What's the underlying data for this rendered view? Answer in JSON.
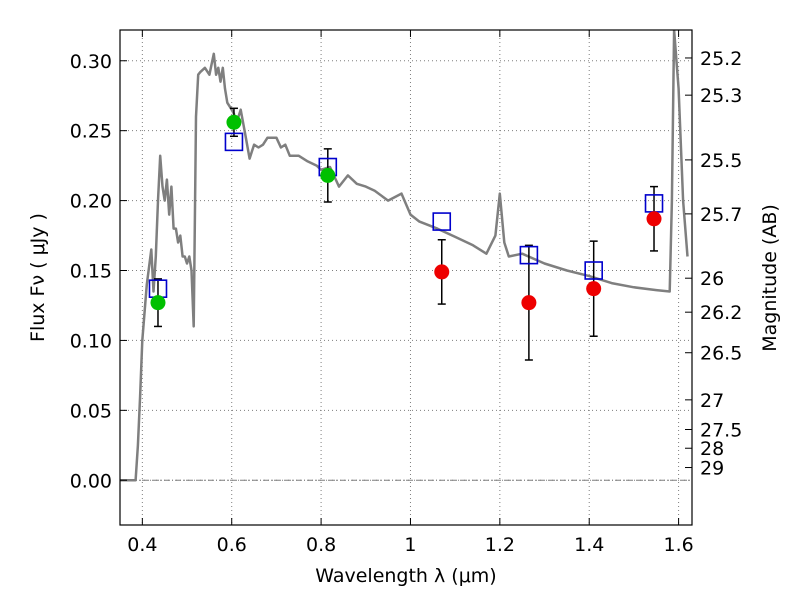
{
  "chart_data": {
    "type": "scatter",
    "xlabel": "Wavelength  λ (μm)",
    "ylabel": "Flux  Fν  ( μJy )",
    "y2label": "Magnitude (AB)",
    "xlim": [
      0.35,
      1.63
    ],
    "ylim": [
      -0.032,
      0.322
    ],
    "grid": true,
    "x_ticks": [
      0.4,
      0.6,
      0.8,
      1.0,
      1.2,
      1.4,
      1.6
    ],
    "x_tick_labels": [
      "0.4",
      "0.6",
      "0.8",
      "1",
      "1.2",
      "1.4",
      "1.6"
    ],
    "y_ticks": [
      0.0,
      0.05,
      0.1,
      0.15,
      0.2,
      0.25,
      0.3
    ],
    "y_tick_labels": [
      "0.00",
      "0.05",
      "0.10",
      "0.15",
      "0.20",
      "0.25",
      "0.30"
    ],
    "mag_ticks": [
      {
        "label": "25.2",
        "flux": 0.302
      },
      {
        "label": "25.3",
        "flux": 0.2754
      },
      {
        "label": "25.5",
        "flux": 0.2291
      },
      {
        "label": "25.7",
        "flux": 0.1905
      },
      {
        "label": "26",
        "flux": 0.1445
      },
      {
        "label": "26.2",
        "flux": 0.1202
      },
      {
        "label": "26.5",
        "flux": 0.0912
      },
      {
        "label": "27",
        "flux": 0.0575
      },
      {
        "label": "27.5",
        "flux": 0.0363
      },
      {
        "label": "28",
        "flux": 0.0229
      },
      {
        "label": "29",
        "flux": 0.0091
      }
    ],
    "series": [
      {
        "type": "line",
        "color": "#7f7f7f",
        "x": [
          0.35,
          0.385,
          0.39,
          0.395,
          0.4,
          0.41,
          0.42,
          0.425,
          0.43,
          0.435,
          0.44,
          0.445,
          0.45,
          0.455,
          0.46,
          0.465,
          0.47,
          0.475,
          0.48,
          0.485,
          0.49,
          0.495,
          0.5,
          0.505,
          0.51,
          0.515,
          0.52,
          0.525,
          0.53,
          0.54,
          0.55,
          0.56,
          0.565,
          0.57,
          0.575,
          0.58,
          0.585,
          0.59,
          0.6,
          0.605,
          0.61,
          0.62,
          0.63,
          0.64,
          0.645,
          0.65,
          0.66,
          0.67,
          0.68,
          0.7,
          0.71,
          0.72,
          0.73,
          0.75,
          0.77,
          0.79,
          0.8,
          0.82,
          0.84,
          0.86,
          0.88,
          0.9,
          0.92,
          0.95,
          0.98,
          1.0,
          1.02,
          1.06,
          1.1,
          1.14,
          1.17,
          1.19,
          1.2,
          1.21,
          1.22,
          1.25,
          1.3,
          1.35,
          1.4,
          1.45,
          1.5,
          1.55,
          1.58,
          1.585,
          1.59,
          1.6,
          1.61,
          1.62
        ],
        "y": [
          0.0,
          0.0,
          0.025,
          0.06,
          0.1,
          0.14,
          0.165,
          0.135,
          0.16,
          0.2,
          0.232,
          0.21,
          0.2,
          0.215,
          0.19,
          0.21,
          0.18,
          0.18,
          0.17,
          0.175,
          0.16,
          0.16,
          0.155,
          0.16,
          0.15,
          0.11,
          0.26,
          0.29,
          0.292,
          0.295,
          0.29,
          0.305,
          0.29,
          0.295,
          0.285,
          0.295,
          0.28,
          0.27,
          0.265,
          0.262,
          0.255,
          0.265,
          0.248,
          0.23,
          0.235,
          0.24,
          0.238,
          0.24,
          0.245,
          0.245,
          0.238,
          0.24,
          0.232,
          0.232,
          0.228,
          0.225,
          0.222,
          0.224,
          0.21,
          0.218,
          0.212,
          0.21,
          0.207,
          0.2,
          0.205,
          0.19,
          0.185,
          0.18,
          0.174,
          0.168,
          0.162,
          0.175,
          0.205,
          0.17,
          0.16,
          0.162,
          0.155,
          0.15,
          0.146,
          0.141,
          0.138,
          0.136,
          0.135,
          0.2,
          0.322,
          0.28,
          0.2,
          0.16
        ]
      },
      {
        "type": "markers",
        "marker": "open-square",
        "color": "#0000cc",
        "x": [
          0.435,
          0.605,
          0.815,
          1.07,
          1.265,
          1.41,
          1.545
        ],
        "y": [
          0.137,
          0.242,
          0.224,
          0.185,
          0.161,
          0.15,
          0.198
        ]
      },
      {
        "type": "markers",
        "marker": "filled-circle",
        "color": "#00c000",
        "x": [
          0.435,
          0.605,
          0.815
        ],
        "y": [
          0.127,
          0.256,
          0.218
        ],
        "yerr": [
          0.017,
          0.01,
          0.019
        ]
      },
      {
        "type": "markers",
        "marker": "filled-circle",
        "color": "#ee0000",
        "x": [
          1.07,
          1.265,
          1.41,
          1.545
        ],
        "y": [
          0.149,
          0.127,
          0.137,
          0.187
        ],
        "yerr": [
          0.023,
          0.041,
          0.034,
          0.023
        ]
      }
    ],
    "colors": {
      "axis": "#000000",
      "grid": "#7f7f7f",
      "sed": "#7f7f7f",
      "model_flux": "#0000cc",
      "observed_hst": "#00c000",
      "observed_ir": "#ee0000"
    }
  }
}
